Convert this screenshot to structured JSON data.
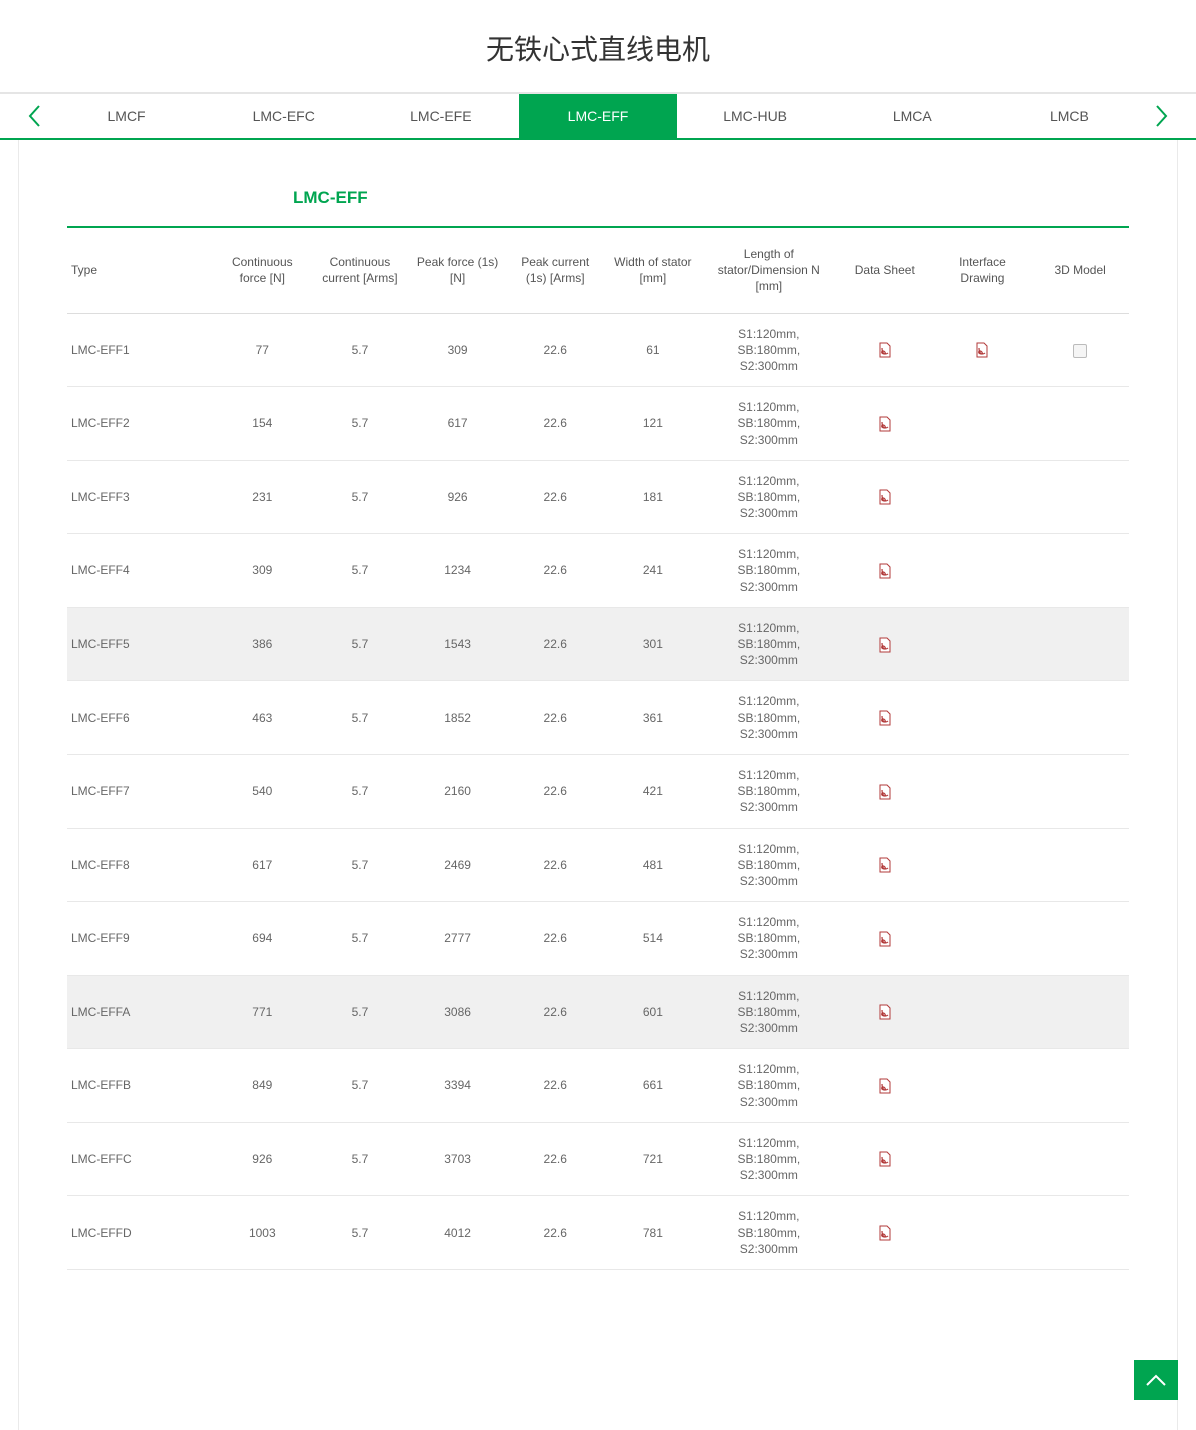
{
  "colors": {
    "accent": "#00a550",
    "text": "#666666",
    "heading": "#333333",
    "border": "#e5e5e5",
    "rowHighlight": "#f0f0f0",
    "pdfIcon": "#b23a3a"
  },
  "pageTitle": "无铁心式直线电机",
  "tabs": [
    {
      "label": "LMCF",
      "active": false
    },
    {
      "label": "LMC-EFC",
      "active": false
    },
    {
      "label": "LMC-EFE",
      "active": false
    },
    {
      "label": "LMC-EFF",
      "active": true
    },
    {
      "label": "LMC-HUB",
      "active": false
    },
    {
      "label": "LMCA",
      "active": false
    },
    {
      "label": "LMCB",
      "active": false
    }
  ],
  "sectionTitle": "LMC-EFF",
  "table": {
    "columns": [
      "Type",
      "Continuous force [N]",
      "Continuous current [Arms]",
      "Peak force (1s) [N]",
      "Peak current (1s) [Arms]",
      "Width of stator [mm]",
      "Length of stator/Dimension N [mm]",
      "Data Sheet",
      "Interface Drawing",
      "3D Model"
    ],
    "rows": [
      {
        "type": "LMC-EFF1",
        "cf": "77",
        "cc": "5.7",
        "pf": "309",
        "pc": "22.6",
        "ws": "61",
        "ls": "S1:120mm, SB:180mm, S2:300mm",
        "ds": true,
        "id": true,
        "m3d": true,
        "hl": false
      },
      {
        "type": "LMC-EFF2",
        "cf": "154",
        "cc": "5.7",
        "pf": "617",
        "pc": "22.6",
        "ws": "121",
        "ls": "S1:120mm, SB:180mm, S2:300mm",
        "ds": true,
        "id": false,
        "m3d": false,
        "hl": false
      },
      {
        "type": "LMC-EFF3",
        "cf": "231",
        "cc": "5.7",
        "pf": "926",
        "pc": "22.6",
        "ws": "181",
        "ls": "S1:120mm, SB:180mm, S2:300mm",
        "ds": true,
        "id": false,
        "m3d": false,
        "hl": false
      },
      {
        "type": "LMC-EFF4",
        "cf": "309",
        "cc": "5.7",
        "pf": "1234",
        "pc": "22.6",
        "ws": "241",
        "ls": "S1:120mm, SB:180mm, S2:300mm",
        "ds": true,
        "id": false,
        "m3d": false,
        "hl": false
      },
      {
        "type": "LMC-EFF5",
        "cf": "386",
        "cc": "5.7",
        "pf": "1543",
        "pc": "22.6",
        "ws": "301",
        "ls": "S1:120mm, SB:180mm, S2:300mm",
        "ds": true,
        "id": false,
        "m3d": false,
        "hl": true
      },
      {
        "type": "LMC-EFF6",
        "cf": "463",
        "cc": "5.7",
        "pf": "1852",
        "pc": "22.6",
        "ws": "361",
        "ls": "S1:120mm, SB:180mm, S2:300mm",
        "ds": true,
        "id": false,
        "m3d": false,
        "hl": false
      },
      {
        "type": "LMC-EFF7",
        "cf": "540",
        "cc": "5.7",
        "pf": "2160",
        "pc": "22.6",
        "ws": "421",
        "ls": "S1:120mm, SB:180mm, S2:300mm",
        "ds": true,
        "id": false,
        "m3d": false,
        "hl": false
      },
      {
        "type": "LMC-EFF8",
        "cf": "617",
        "cc": "5.7",
        "pf": "2469",
        "pc": "22.6",
        "ws": "481",
        "ls": "S1:120mm, SB:180mm, S2:300mm",
        "ds": true,
        "id": false,
        "m3d": false,
        "hl": false
      },
      {
        "type": "LMC-EFF9",
        "cf": "694",
        "cc": "5.7",
        "pf": "2777",
        "pc": "22.6",
        "ws": "514",
        "ls": "S1:120mm, SB:180mm, S2:300mm",
        "ds": true,
        "id": false,
        "m3d": false,
        "hl": false
      },
      {
        "type": "LMC-EFFA",
        "cf": "771",
        "cc": "5.7",
        "pf": "3086",
        "pc": "22.6",
        "ws": "601",
        "ls": "S1:120mm, SB:180mm, S2:300mm",
        "ds": true,
        "id": false,
        "m3d": false,
        "hl": true
      },
      {
        "type": "LMC-EFFB",
        "cf": "849",
        "cc": "5.7",
        "pf": "3394",
        "pc": "22.6",
        "ws": "661",
        "ls": "S1:120mm, SB:180mm, S2:300mm",
        "ds": true,
        "id": false,
        "m3d": false,
        "hl": false
      },
      {
        "type": "LMC-EFFC",
        "cf": "926",
        "cc": "5.7",
        "pf": "3703",
        "pc": "22.6",
        "ws": "721",
        "ls": "S1:120mm, SB:180mm, S2:300mm",
        "ds": true,
        "id": false,
        "m3d": false,
        "hl": false
      },
      {
        "type": "LMC-EFFD",
        "cf": "1003",
        "cc": "5.7",
        "pf": "4012",
        "pc": "22.6",
        "ws": "781",
        "ls": "S1:120mm, SB:180mm, S2:300mm",
        "ds": true,
        "id": false,
        "m3d": false,
        "hl": false
      }
    ]
  }
}
